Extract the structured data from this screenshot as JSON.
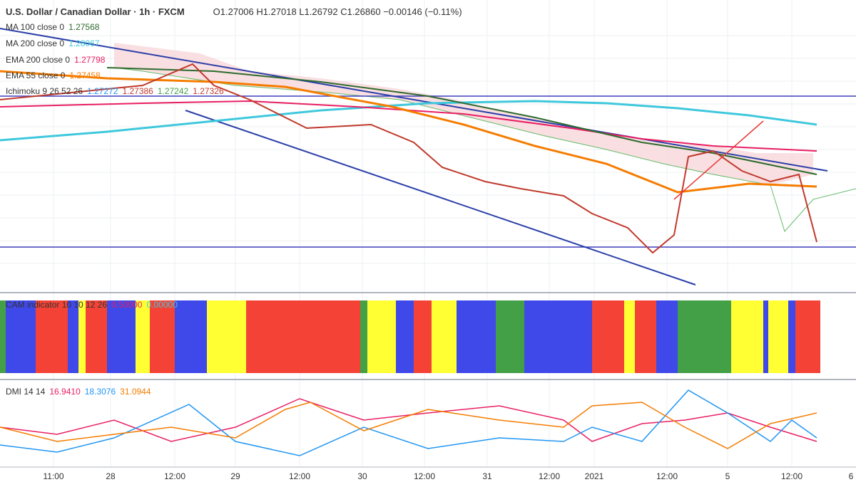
{
  "header": {
    "symbol": "U.S. Dollar / Canadian Dollar · 1h · FXCM",
    "ohlc": "O1.27006 H1.27018 L1.26792 C1.26860 −0.00146 (−0.11%)"
  },
  "indicators": [
    {
      "name": "MA 100 close 0",
      "value": "1.27568"
    },
    {
      "name": "MA 200 close 0",
      "value": "1.28067"
    },
    {
      "name": "EMA 200 close 0",
      "value": "1.27798"
    },
    {
      "name": "EMA 55 close 0",
      "value": "1.27458"
    },
    {
      "name": "Ichimoku 9 26 52 26",
      "values": [
        "1.27272",
        "1.27386",
        "1.27242",
        "1.27326"
      ]
    }
  ],
  "cam": {
    "name": "CAM indicator 10 10 12 26",
    "values": [
      "0.50000",
      "0.00000"
    ]
  },
  "dmi": {
    "name": "DMI 14 14",
    "values": [
      "16.9410",
      "18.3076",
      "31.0944"
    ]
  },
  "x_axis": [
    "11:00",
    "28",
    "12:00",
    "29",
    "12:00",
    "30",
    "12:00",
    "31",
    "12:00",
    "2021",
    "12:00",
    "5",
    "12:00",
    "6"
  ]
}
